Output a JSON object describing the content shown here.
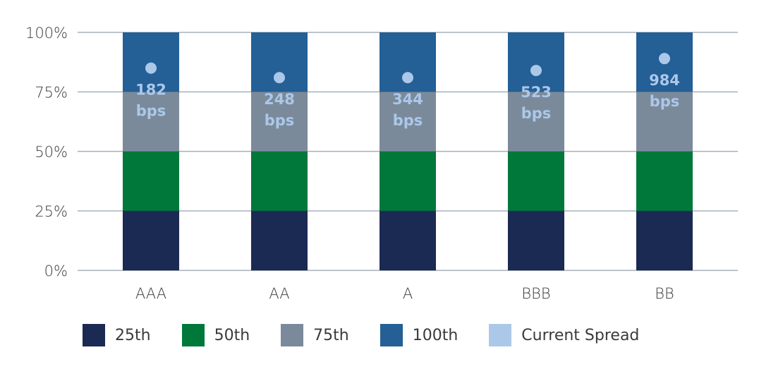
{
  "chart_data": {
    "type": "bar",
    "stacked": true,
    "categories": [
      "AAA",
      "AA",
      "A",
      "BBB",
      "BB"
    ],
    "yticks": [
      "0%",
      "25%",
      "50%",
      "75%",
      "100%"
    ],
    "ylim": [
      0,
      100
    ],
    "series": [
      {
        "name": "25th",
        "color": "#1b2a52",
        "values": [
          25,
          25,
          25,
          25,
          25
        ]
      },
      {
        "name": "50th",
        "color": "#00783a",
        "values": [
          25,
          25,
          25,
          25,
          25
        ]
      },
      {
        "name": "75th",
        "color": "#7b8a9a",
        "values": [
          25,
          25,
          25,
          25,
          25
        ]
      },
      {
        "name": "100th",
        "color": "#245f96",
        "values": [
          25,
          25,
          25,
          25,
          25
        ]
      }
    ],
    "current_spread": {
      "name": "Current Spread",
      "color": "#abc8e9",
      "percentile": [
        85,
        81,
        81,
        84,
        89
      ],
      "labels": [
        "182",
        "248",
        "344",
        "523",
        "984"
      ],
      "unit": "bps"
    },
    "grid": true,
    "legend_position": "bottom"
  }
}
